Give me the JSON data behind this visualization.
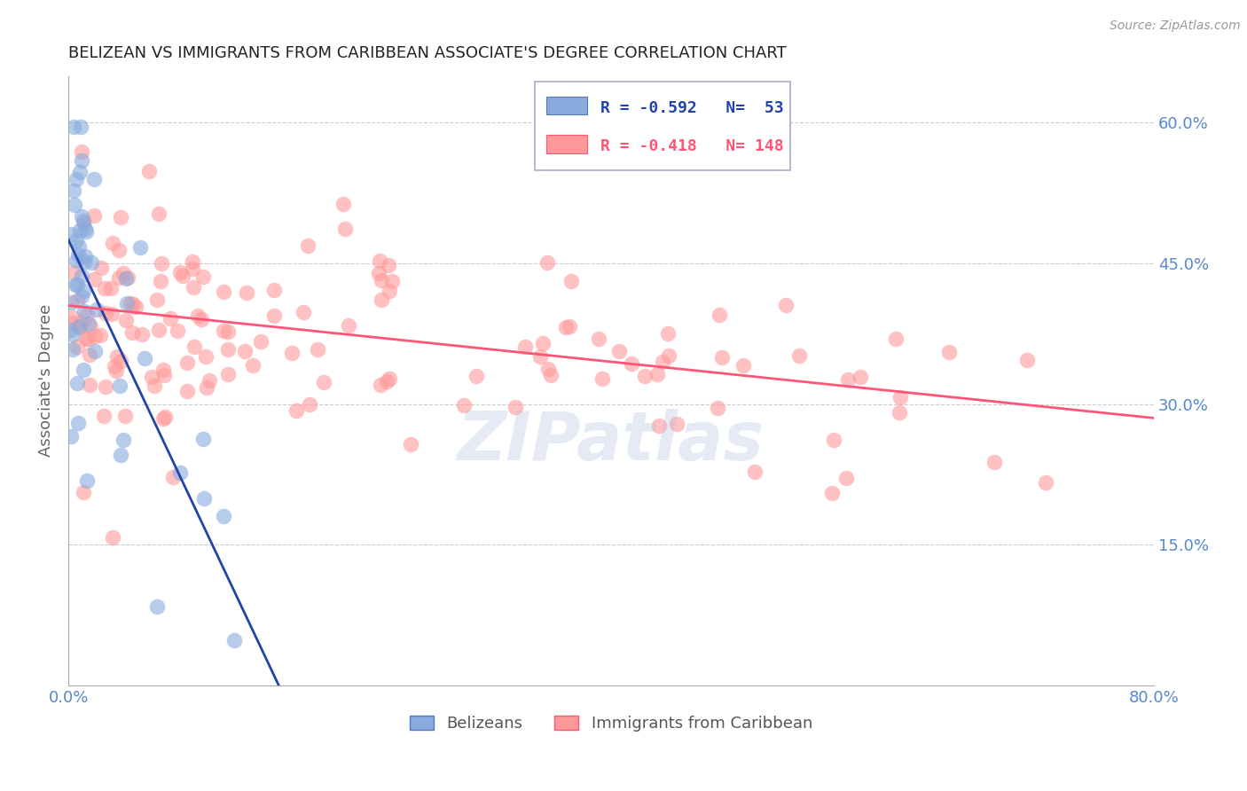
{
  "title": "BELIZEAN VS IMMIGRANTS FROM CARIBBEAN ASSOCIATE'S DEGREE CORRELATION CHART",
  "source": "Source: ZipAtlas.com",
  "ylabel": "Associate's Degree",
  "xlim": [
    0.0,
    0.8
  ],
  "ylim": [
    0.0,
    0.65
  ],
  "watermark": "ZIPatlas",
  "legend": {
    "blue_R": "-0.592",
    "blue_N": "53",
    "pink_R": "-0.418",
    "pink_N": "148",
    "blue_label": "Belizeans",
    "pink_label": "Immigrants from Caribbean"
  },
  "blue_line_x": [
    0.0,
    0.155
  ],
  "blue_line_y": [
    0.475,
    0.0
  ],
  "pink_line_x": [
    0.0,
    0.8
  ],
  "pink_line_y": [
    0.405,
    0.285
  ],
  "blue_color": "#88AADD",
  "pink_color": "#FF9999",
  "blue_line_color": "#2244AA",
  "pink_line_color": "#FF5577",
  "grid_color": "#CCCCCC",
  "title_color": "#222222",
  "axis_label_color": "#5588CC",
  "watermark_color": "#AABBDD",
  "background_color": "#FFFFFF"
}
